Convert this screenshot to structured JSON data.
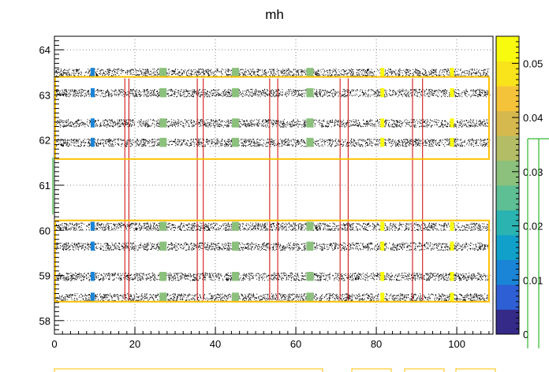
{
  "chart_data": {
    "type": "heatmap",
    "title": "mh",
    "xlabel": "",
    "ylabel": "",
    "xlim": [
      0,
      109
    ],
    "ylim": [
      57.7,
      64.3
    ],
    "grid": true,
    "x_ticks": [
      0,
      20,
      40,
      60,
      80,
      100
    ],
    "y_ticks": [
      58,
      59,
      60,
      61,
      62,
      63,
      64
    ],
    "colorbar": {
      "range": [
        0,
        0.055
      ],
      "ticks": [
        0,
        0.01,
        0.02,
        0.03,
        0.04,
        0.05
      ],
      "tick_labels": [
        "0",
        "0.01",
        "0.02",
        "0.03",
        "0.04",
        "0.05"
      ]
    },
    "strip_centers_y": [
      58.52,
      58.98,
      59.65,
      60.09,
      61.95,
      62.38,
      63.05,
      63.5
    ],
    "module_boxes": [
      {
        "x": [
          0,
          108
        ],
        "y": [
          58.42,
          60.22
        ]
      },
      {
        "x": [
          0,
          108
        ],
        "y": [
          61.58,
          63.4
        ]
      }
    ],
    "markers": [
      {
        "x": 9.5,
        "value": 0.012
      },
      {
        "x": 27,
        "value": 0.031
      },
      {
        "x": 45,
        "value": 0.031
      },
      {
        "x": 63.5,
        "value": 0.031
      },
      {
        "x": 81.5,
        "value": 0.053
      },
      {
        "x": 98.8,
        "value": 0.053
      }
    ],
    "edge_lines_x": [
      17.5,
      18.5,
      35.5,
      37,
      53.5,
      55.5,
      71,
      73,
      89,
      91.5
    ]
  },
  "colors": {
    "box": "#ffc000",
    "edge_line": "#cc0000",
    "points": "#000000",
    "grid": "#888888",
    "palette": [
      "#352a87",
      "#2e5fd4",
      "#1a84d6",
      "#11a0c9",
      "#2ab3b0",
      "#5ebe94",
      "#8bc17c",
      "#b2bd66",
      "#d6b94e",
      "#f4c33a",
      "#f9e31a",
      "#f9fb0e"
    ]
  }
}
